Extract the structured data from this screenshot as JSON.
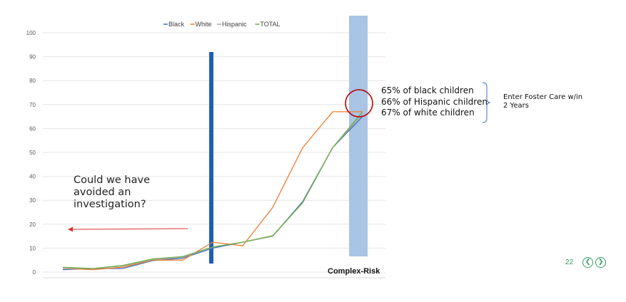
{
  "chart_data": {
    "type": "line",
    "title": "",
    "xlabel": "",
    "ylabel": "",
    "ylim": [
      0,
      100
    ],
    "yticks": [
      0,
      10,
      20,
      30,
      40,
      50,
      60,
      70,
      80,
      90,
      100
    ],
    "grid": true,
    "legend_position": "top",
    "x": [
      1,
      2,
      3,
      4,
      5,
      6,
      7,
      8,
      9,
      10,
      11
    ],
    "series": [
      {
        "name": "Black",
        "color": "#4472c4",
        "values": [
          1.0,
          1.5,
          1.5,
          4.8,
          5.8,
          10.0,
          12.5,
          15.0,
          29.5,
          52.0,
          65.0
        ]
      },
      {
        "name": "White",
        "color": "#ed7d31",
        "values": [
          1.5,
          1.0,
          2.0,
          5.0,
          5.0,
          12.5,
          11.0,
          27.0,
          52.0,
          67.0,
          67.0
        ]
      },
      {
        "name": "Hispanic",
        "color": "#a5a5a5",
        "values": [
          1.5,
          1.5,
          2.5,
          5.2,
          6.2,
          10.5,
          12.5,
          15.0,
          29.0,
          52.0,
          66.0
        ]
      },
      {
        "name": "TOTAL",
        "color": "#70ad47",
        "values": [
          2.0,
          1.5,
          2.8,
          5.5,
          6.5,
          10.5,
          12.5,
          15.2,
          29.0,
          52.0,
          67.0
        ]
      }
    ],
    "x_label_right": "Complex-Risk",
    "annotations": {
      "threshold_line_color": "#1f5fae",
      "highlight_band_color": "#a9c4e4",
      "circle_color": "#c00000",
      "arrow_color": "#e03030"
    }
  },
  "annotations": {
    "question": "Could we have avoided an investigation?",
    "stats": [
      "65% of black children",
      "66% of Hispanic children",
      "67% of white children"
    ],
    "foster_label": "Enter Foster Care w/in 2 Years",
    "complex_label": "Complex-Risk"
  },
  "footer": {
    "page_number": "22",
    "prev_icon": "chevron-left",
    "next_icon": "chevron-right"
  }
}
